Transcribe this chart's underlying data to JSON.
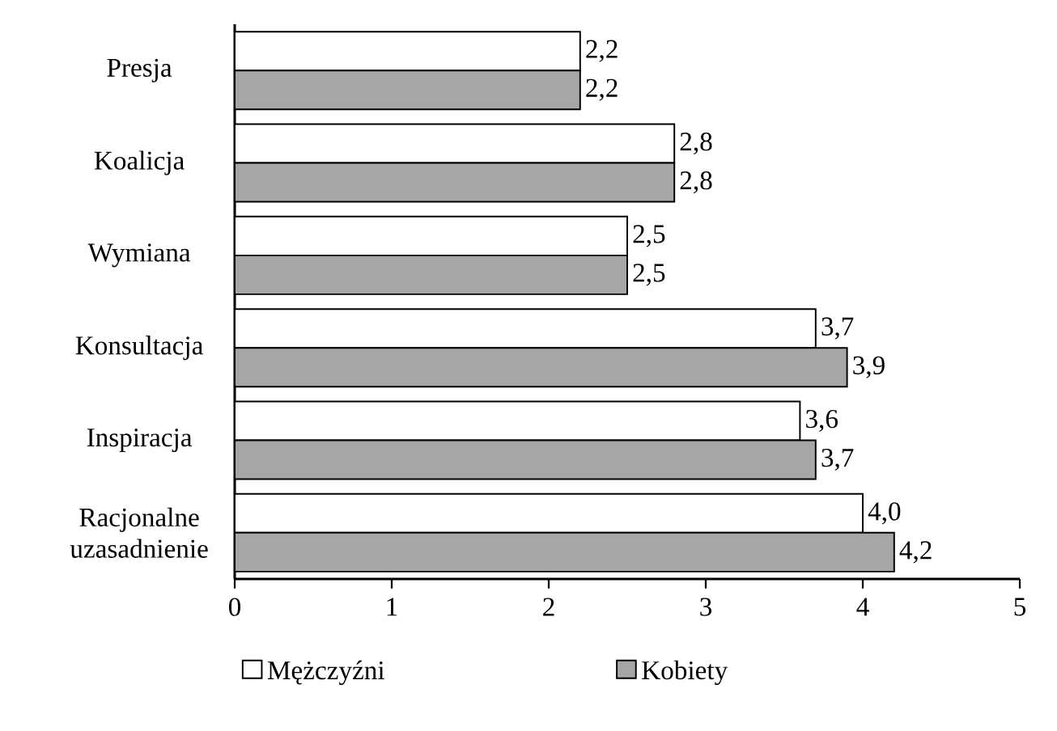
{
  "chart_data": {
    "type": "bar",
    "orientation": "horizontal",
    "categories": [
      "Presja",
      "Koalicja",
      "Wymiana",
      "Konsultacja",
      "Inspiracja",
      "Racjonalne uzasadnienie"
    ],
    "series": [
      {
        "name": "Mężczyźni",
        "color": "#ffffff",
        "values": [
          2.2,
          2.8,
          2.5,
          3.7,
          3.6,
          4.0
        ],
        "value_labels": [
          "2,2",
          "2,8",
          "2,5",
          "3,7",
          "3,6",
          "4,0"
        ]
      },
      {
        "name": "Kobiety",
        "color": "#a6a6a6",
        "values": [
          2.2,
          2.8,
          2.5,
          3.9,
          3.7,
          4.2
        ],
        "value_labels": [
          "2,2",
          "2,8",
          "2,5",
          "3,9",
          "3,7",
          "4,2"
        ]
      }
    ],
    "xlim": [
      0,
      5
    ],
    "xticks": [
      0,
      1,
      2,
      3,
      4,
      5
    ],
    "grid": false,
    "legend": "bottom"
  }
}
